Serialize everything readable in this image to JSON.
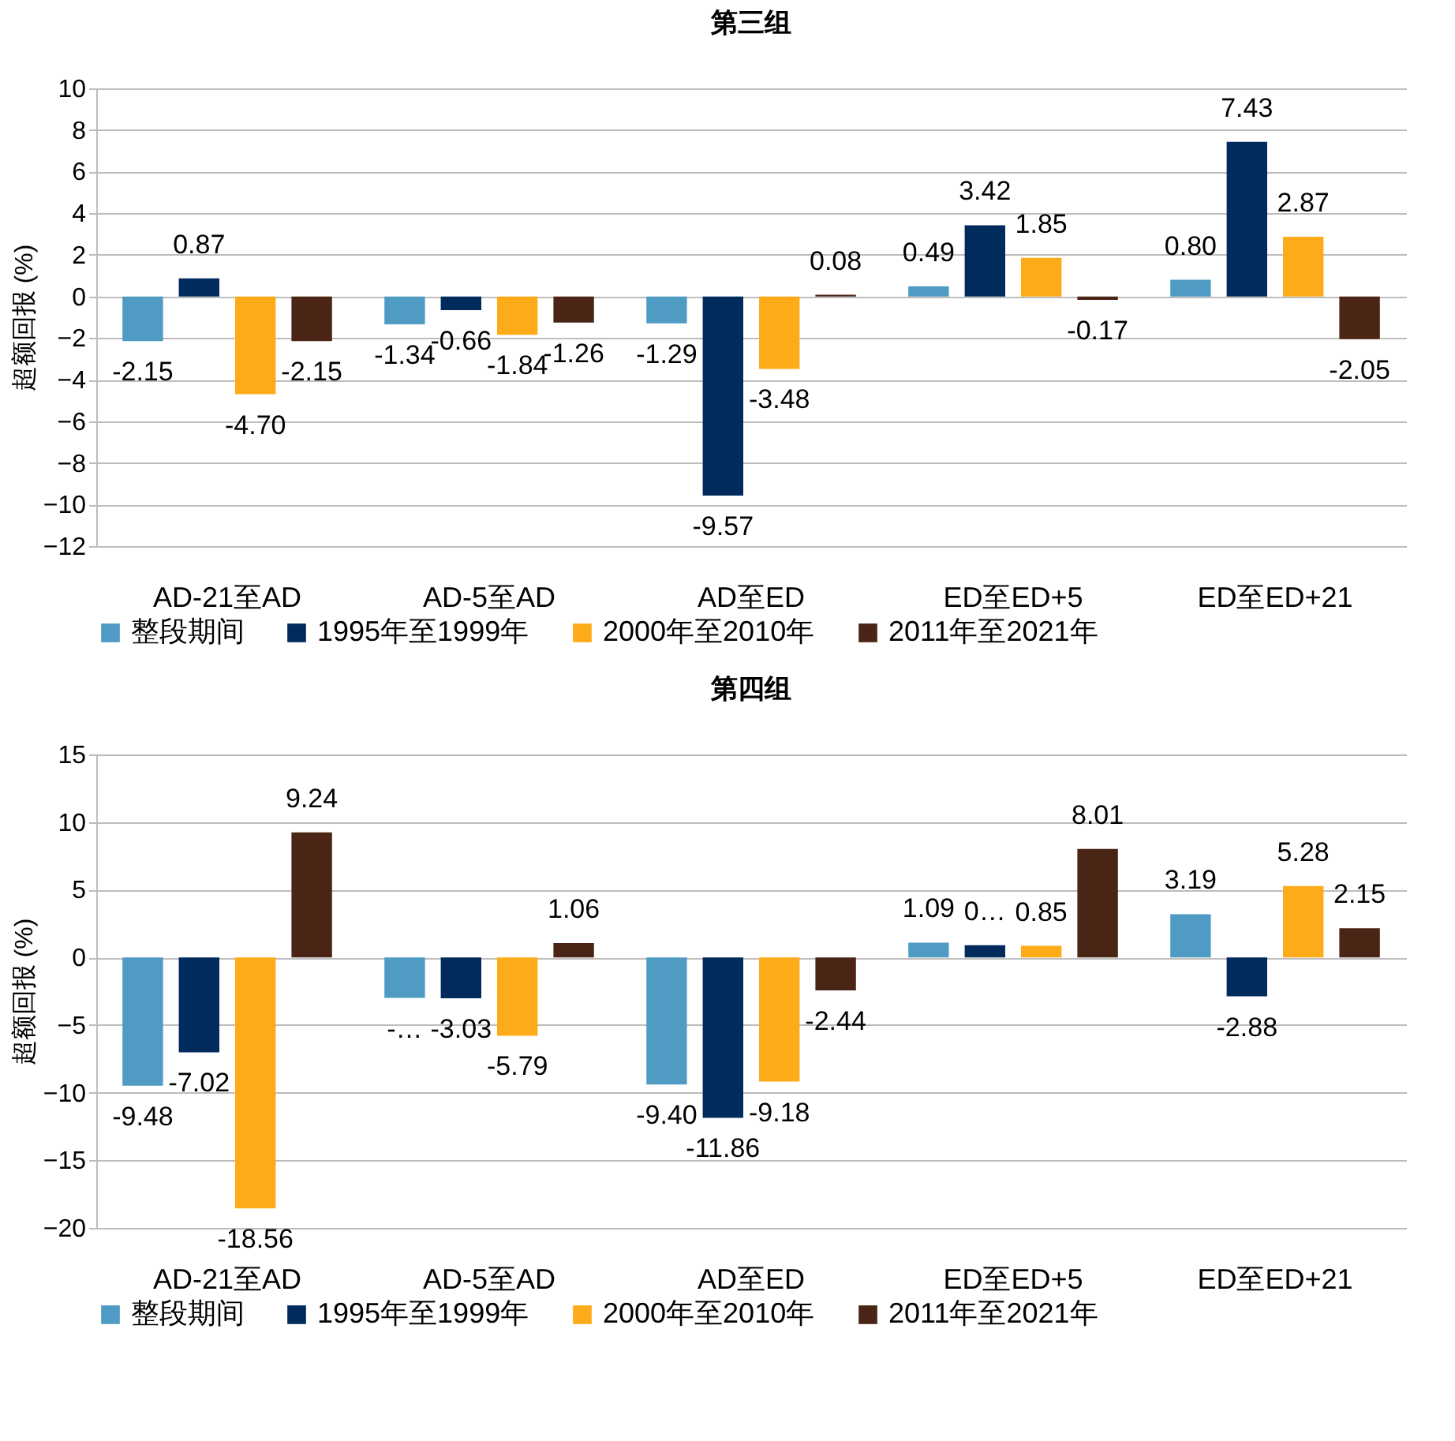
{
  "chart_data": [
    {
      "type": "bar",
      "title": "第三组",
      "ylabel": "超额回报 (%)",
      "categories": [
        "AD-21至AD",
        "AD-5至AD",
        "AD至ED",
        "ED至ED+5",
        "ED至ED+21"
      ],
      "ylim": [
        -12,
        10
      ],
      "yticks": [
        -12,
        -10,
        -8,
        -6,
        -4,
        -2,
        0,
        2,
        4,
        6,
        8,
        10
      ],
      "grid": "y",
      "legend": "bottom",
      "series": [
        {
          "name": "整段期间",
          "color": "#4f9bc4",
          "values": [
            -2.15,
            -1.34,
            -1.29,
            0.49,
            0.8
          ],
          "value_labels": [
            "-2.15",
            "-1.34",
            "-1.29",
            "0.49",
            "0.80"
          ]
        },
        {
          "name": "1995年至1999年",
          "color": "#002b5c",
          "values": [
            0.87,
            -0.66,
            -9.57,
            3.42,
            7.43
          ],
          "value_labels": [
            "0.87",
            "-0.66",
            "-9.57",
            "3.42",
            "7.43"
          ]
        },
        {
          "name": "2000年至2010年",
          "color": "#fdab19",
          "values": [
            -4.7,
            -1.84,
            -3.48,
            1.85,
            2.87
          ],
          "value_labels": [
            "-4.70",
            "-1.84",
            "-3.48",
            "1.85",
            "2.87"
          ]
        },
        {
          "name": "2011年至2021年",
          "color": "#4a2515",
          "values": [
            -2.15,
            -1.26,
            0.08,
            -0.17,
            -2.05
          ],
          "value_labels": [
            "-2.15",
            "-1.26",
            "0.08",
            "-0.17",
            "-2.05"
          ]
        }
      ]
    },
    {
      "type": "bar",
      "title": "第四组",
      "ylabel": "超额回报 (%)",
      "categories": [
        "AD-21至AD",
        "AD-5至AD",
        "AD至ED",
        "ED至ED+5",
        "ED至ED+21"
      ],
      "ylim": [
        -20,
        15
      ],
      "yticks": [
        -20,
        -15,
        -10,
        -5,
        0,
        5,
        10,
        15
      ],
      "grid": "y",
      "legend": "bottom",
      "series": [
        {
          "name": "整段期间",
          "color": "#4f9bc4",
          "values": [
            -9.48,
            -3.0,
            -9.4,
            1.09,
            3.19
          ],
          "value_labels": [
            "-9.48",
            "-…",
            "-9.40",
            "1.09",
            "3.19"
          ]
        },
        {
          "name": "1995年至1999年",
          "color": "#002b5c",
          "values": [
            -7.02,
            -3.03,
            -11.86,
            0.9,
            -2.88
          ],
          "value_labels": [
            "-7.02",
            "-3.03",
            "-11.86",
            "0…",
            "-2.88"
          ]
        },
        {
          "name": "2000年至2010年",
          "color": "#fdab19",
          "values": [
            -18.56,
            -5.79,
            -9.18,
            0.85,
            5.28
          ],
          "value_labels": [
            "-18.56",
            "-5.79",
            "-9.18",
            "0.85",
            "5.28"
          ]
        },
        {
          "name": "2011年至2021年",
          "color": "#4a2515",
          "values": [
            9.24,
            1.06,
            -2.44,
            8.01,
            2.15
          ],
          "value_labels": [
            "9.24",
            "1.06",
            "-2.44",
            "8.01",
            "2.15"
          ]
        }
      ]
    }
  ]
}
